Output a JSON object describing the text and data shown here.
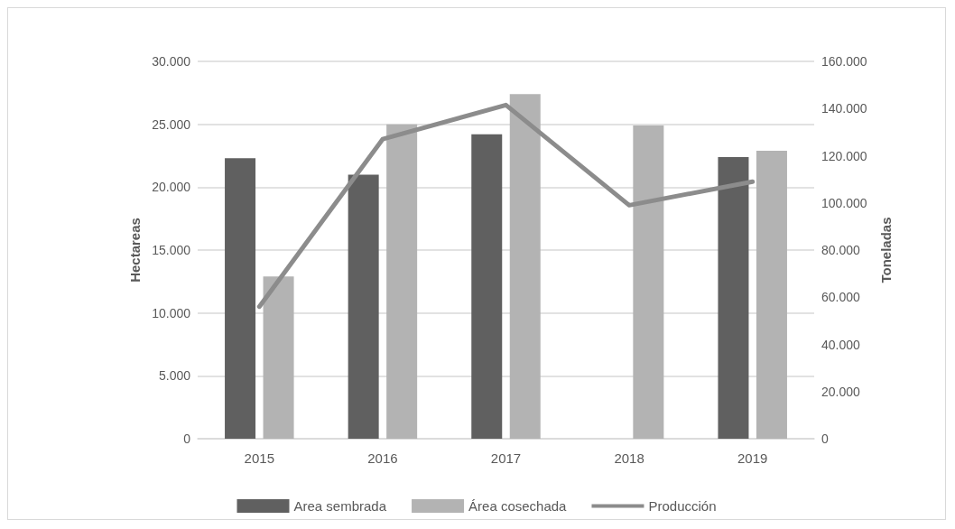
{
  "chart_data": {
    "type": "bar",
    "ylabel": "Hectareas",
    "y2label": "Toneladas",
    "categories": [
      "2015",
      "2016",
      "2017",
      "2018",
      "2019"
    ],
    "series": [
      {
        "name": "Area sembrada",
        "color": "#606060",
        "values": [
          22300,
          21000,
          24200,
          null,
          22400
        ]
      },
      {
        "name": "Área cosechada",
        "color": "#b3b3b3",
        "values": [
          12900,
          25000,
          27400,
          24900,
          22900
        ]
      },
      {
        "name": "Producción",
        "type": "line",
        "axis": "y2",
        "color": "#8c8c8c",
        "values": [
          56000,
          127000,
          141500,
          99000,
          109000
        ]
      }
    ],
    "ylim": [
      0,
      30000
    ],
    "yticks": [
      {
        "value": 0,
        "label": "0"
      },
      {
        "value": 5000,
        "label": "5.000"
      },
      {
        "value": 10000,
        "label": "10.000"
      },
      {
        "value": 15000,
        "label": "15.000"
      },
      {
        "value": 20000,
        "label": "20.000"
      },
      {
        "value": 25000,
        "label": "25.000"
      },
      {
        "value": 30000,
        "label": "30.000"
      }
    ],
    "y2lim": [
      0,
      160000
    ],
    "y2ticks": [
      {
        "value": 0,
        "label": "0"
      },
      {
        "value": 20000,
        "label": "20.000"
      },
      {
        "value": 40000,
        "label": "40.000"
      },
      {
        "value": 60000,
        "label": "60.000"
      },
      {
        "value": 80000,
        "label": "80.000"
      },
      {
        "value": 100000,
        "label": "100.000"
      },
      {
        "value": 120000,
        "label": "120.000"
      },
      {
        "value": 140000,
        "label": "140.000"
      },
      {
        "value": 160000,
        "label": "160.000"
      }
    ],
    "grid": "y",
    "legend": "bottom",
    "marker": "none"
  }
}
